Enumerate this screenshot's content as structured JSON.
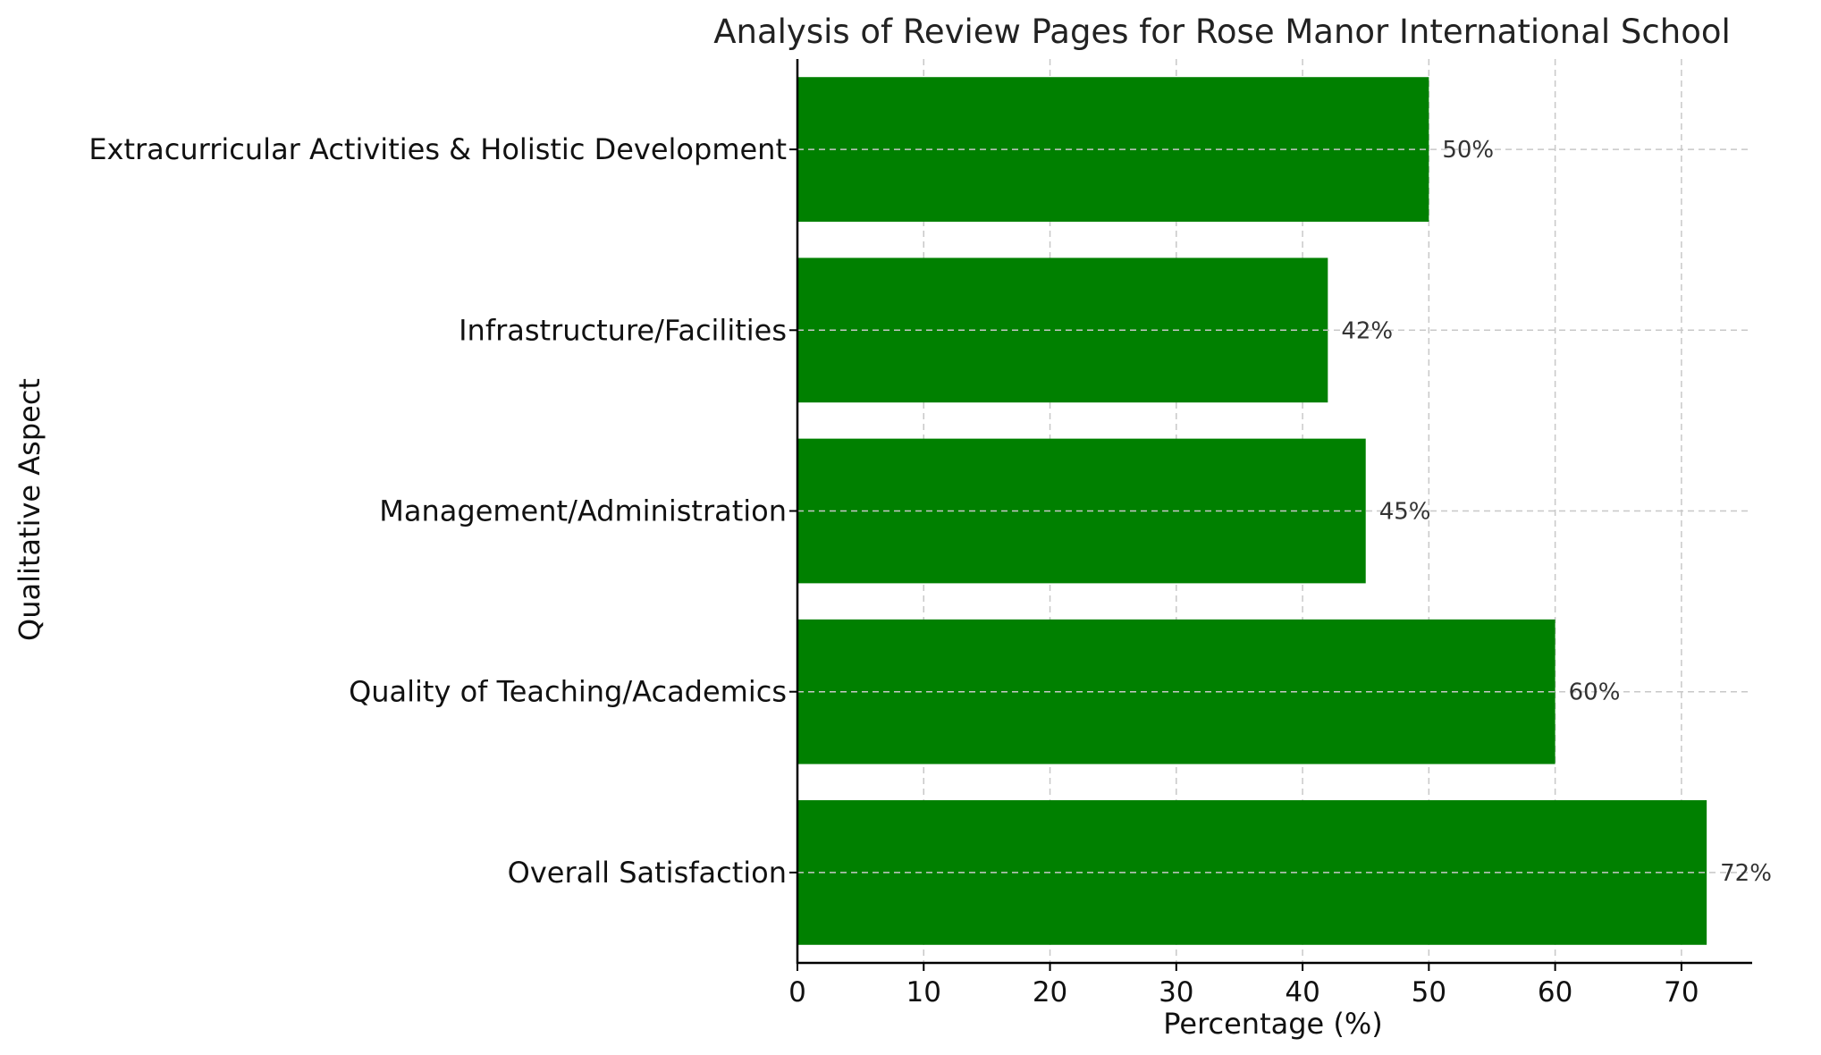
{
  "chart_data": {
    "type": "bar",
    "orientation": "horizontal",
    "title": "Analysis of Review Pages for Rose Manor International School",
    "xlabel": "Percentage (%)",
    "ylabel": "Qualitative Aspect",
    "categories": [
      "Overall Satisfaction",
      "Quality of Teaching/Academics",
      "Management/Administration",
      "Infrastructure/Facilities",
      "Extracurricular Activities & Holistic Development"
    ],
    "values": [
      72,
      60,
      45,
      42,
      50
    ],
    "data_labels": [
      "72%",
      "60%",
      "45%",
      "42%",
      "50%"
    ],
    "xlim": [
      0,
      75.6
    ],
    "xticks": [
      0,
      10,
      20,
      30,
      40,
      50,
      60,
      70
    ],
    "grid": true,
    "bar_color": "#008000"
  }
}
